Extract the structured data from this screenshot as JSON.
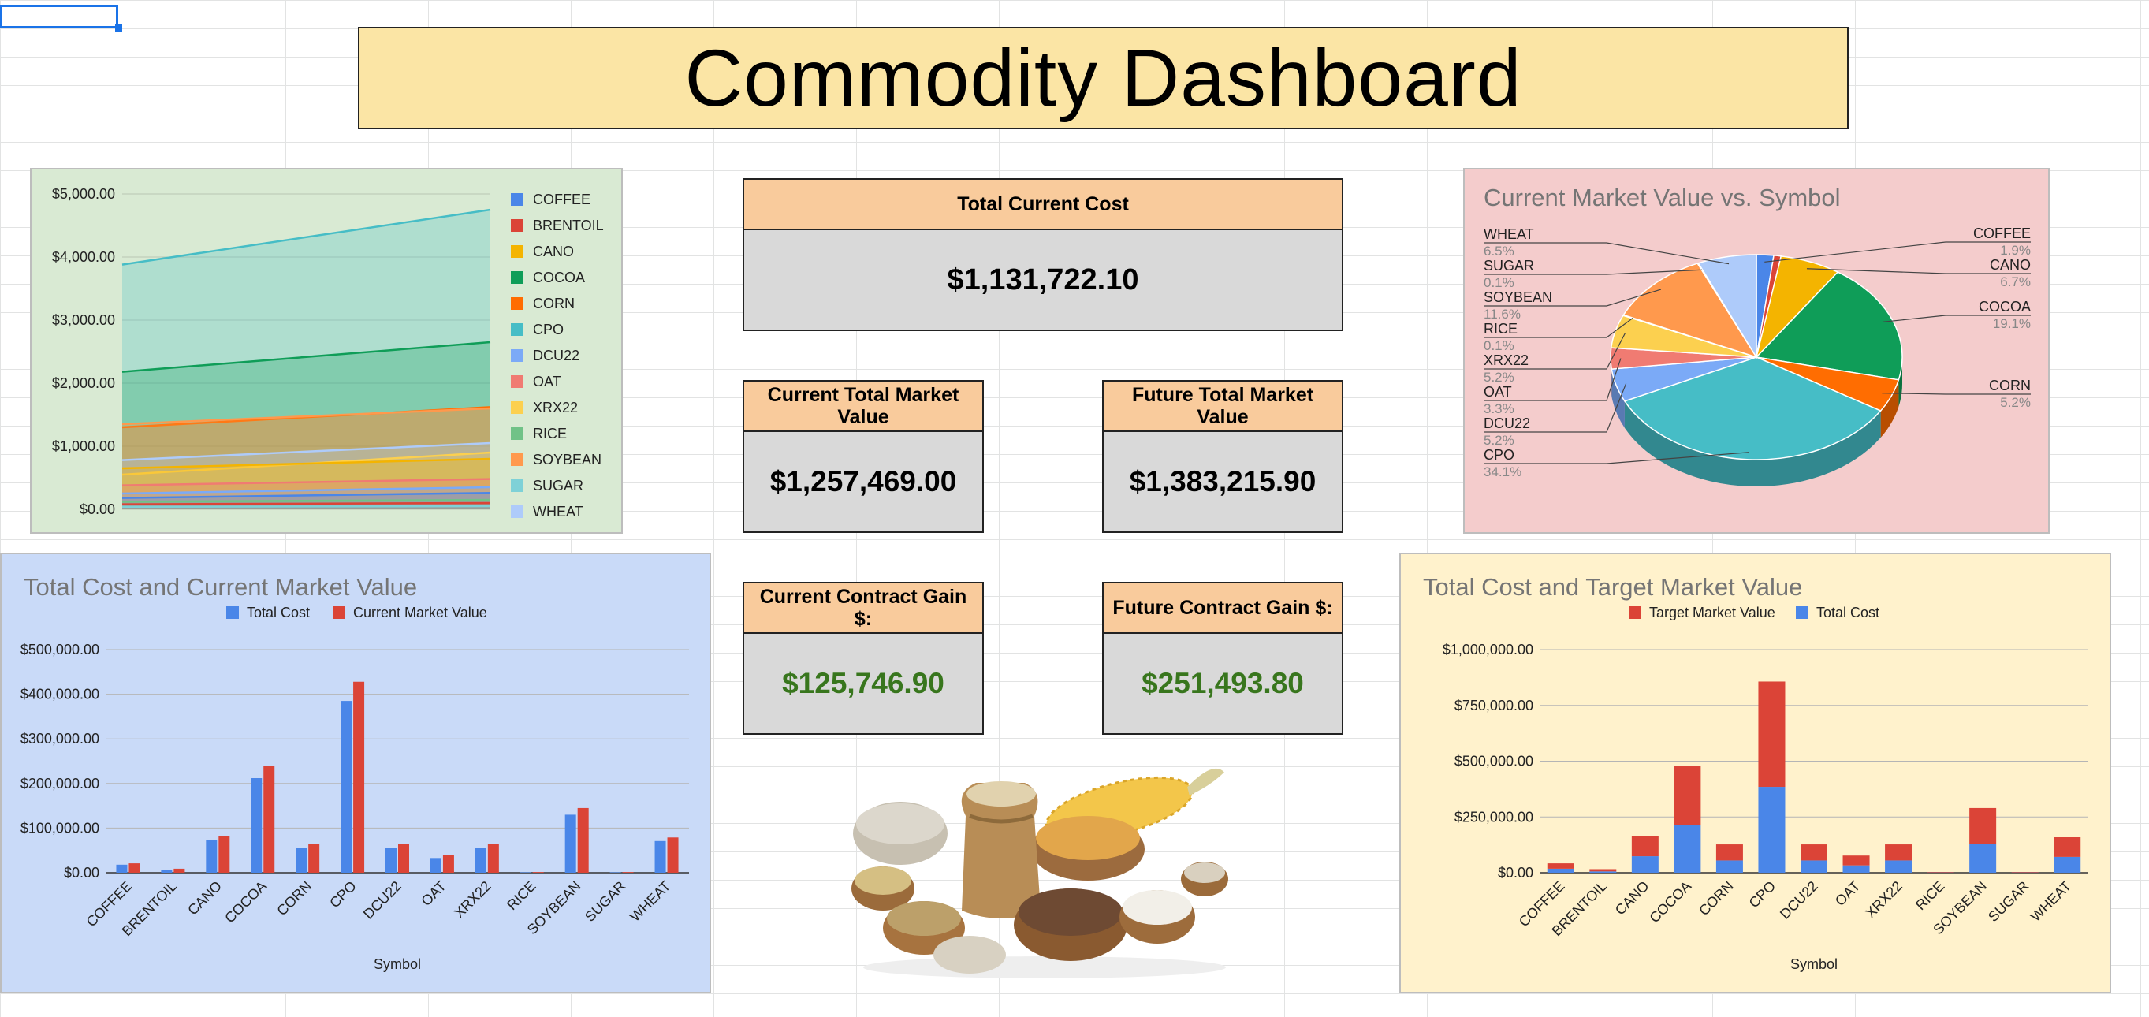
{
  "dashboard": {
    "title": "Commodity Dashboard"
  },
  "kpis": {
    "total_current_cost": {
      "label": "Total Current Cost",
      "value": "$1,131,722.10"
    },
    "current_total_market_value": {
      "label": "Current Total Market Value",
      "value": "$1,257,469.00"
    },
    "future_total_market_value": {
      "label": "Future Total Market Value",
      "value": "$1,383,215.90"
    },
    "current_contract_gain": {
      "label": "Current Contract Gain $:",
      "value": "$125,746.90"
    },
    "future_contract_gain": {
      "label": "Future Contract Gain $:",
      "value": "$251,493.80"
    }
  },
  "colors": {
    "COFFEE": "#4a86e8",
    "BRENTOIL": "#db4437",
    "CANO": "#f4b400",
    "COCOA": "#0f9d58",
    "CORN": "#ff6d01",
    "CPO": "#46bdc6",
    "DCU22": "#7baaf7",
    "OAT": "#f07b72",
    "XRX22": "#fcd04f",
    "RICE": "#71c287",
    "SOYBEAN": "#ff994d",
    "SUGAR": "#7ed1d7",
    "WHEAT": "#aecbfa",
    "total_cost": "#4a86e8",
    "market_value": "#db4437"
  },
  "chart_data": [
    {
      "type": "area",
      "title": "",
      "ylim": [
        0,
        5000
      ],
      "yticks": [
        "$0.00",
        "$1,000.00",
        "$2,000.00",
        "$3,000.00",
        "$4,000.00",
        "$5,000.00"
      ],
      "grid": true,
      "legend_position": "right",
      "series": [
        {
          "name": "COFFEE",
          "start": 180,
          "end": 260
        },
        {
          "name": "BRENTOIL",
          "start": 80,
          "end": 100
        },
        {
          "name": "CANO",
          "start": 650,
          "end": 800
        },
        {
          "name": "COCOA",
          "start": 2180,
          "end": 2650
        },
        {
          "name": "CORN",
          "start": 1300,
          "end": 1620
        },
        {
          "name": "CPO",
          "start": 3880,
          "end": 4750
        },
        {
          "name": "DCU22",
          "start": 250,
          "end": 350
        },
        {
          "name": "OAT",
          "start": 380,
          "end": 480
        },
        {
          "name": "XRX22",
          "start": 550,
          "end": 900
        },
        {
          "name": "RICE",
          "start": 120,
          "end": 150
        },
        {
          "name": "SOYBEAN",
          "start": 1350,
          "end": 1600
        },
        {
          "name": "SUGAR",
          "start": 40,
          "end": 50
        },
        {
          "name": "WHEAT",
          "start": 780,
          "end": 1050
        }
      ]
    },
    {
      "type": "pie",
      "title": "Current Market Value vs. Symbol",
      "slices": [
        {
          "label": "COFFEE",
          "pct_label": "1.9%",
          "value": 1.9
        },
        {
          "label": "BRENTOIL",
          "pct_label": "",
          "value": 0.8
        },
        {
          "label": "CANO",
          "pct_label": "6.7%",
          "value": 6.7
        },
        {
          "label": "COCOA",
          "pct_label": "19.1%",
          "value": 19.1
        },
        {
          "label": "CORN",
          "pct_label": "5.2%",
          "value": 5.2
        },
        {
          "label": "CPO",
          "pct_label": "34.1%",
          "value": 34.1
        },
        {
          "label": "DCU22",
          "pct_label": "5.2%",
          "value": 5.2
        },
        {
          "label": "OAT",
          "pct_label": "3.3%",
          "value": 3.3
        },
        {
          "label": "XRX22",
          "pct_label": "5.2%",
          "value": 5.2
        },
        {
          "label": "RICE",
          "pct_label": "0.1%",
          "value": 0.1
        },
        {
          "label": "SOYBEAN",
          "pct_label": "11.6%",
          "value": 11.6
        },
        {
          "label": "SUGAR",
          "pct_label": "0.1%",
          "value": 0.1
        },
        {
          "label": "WHEAT",
          "pct_label": "6.5%",
          "value": 6.5
        }
      ]
    },
    {
      "type": "bar",
      "title": "Total Cost and Current Market Value",
      "xlabel": "Symbol",
      "ylabel": "",
      "ylim": [
        0,
        500000
      ],
      "yticks": [
        "$0.00",
        "$100,000.00",
        "$200,000.00",
        "$300,000.00",
        "$400,000.00",
        "$500,000.00"
      ],
      "legend_position": "top",
      "categories": [
        "COFFEE",
        "BRENTOIL",
        "CANO",
        "COCOA",
        "CORN",
        "CPO",
        "DCU22",
        "OAT",
        "XRX22",
        "RICE",
        "SOYBEAN",
        "SUGAR",
        "WHEAT"
      ],
      "series": [
        {
          "name": "Total Cost",
          "values": [
            18000,
            6000,
            74000,
            212000,
            55000,
            385000,
            55000,
            33000,
            55000,
            1000,
            130000,
            1000,
            71000
          ]
        },
        {
          "name": "Current Market Value",
          "values": [
            21000,
            9000,
            82000,
            240000,
            64000,
            428000,
            64000,
            40000,
            64000,
            1500,
            145000,
            1500,
            79000
          ]
        }
      ]
    },
    {
      "type": "bar",
      "stacked": true,
      "title": "Total Cost and Target Market Value",
      "xlabel": "Symbol",
      "ylabel": "",
      "ylim": [
        0,
        1000000
      ],
      "yticks": [
        "$0.00",
        "$250,000.00",
        "$500,000.00",
        "$750,000.00",
        "$1,000,000.00"
      ],
      "legend_position": "top",
      "categories": [
        "COFFEE",
        "BRENTOIL",
        "CANO",
        "COCOA",
        "CORN",
        "CPO",
        "DCU22",
        "OAT",
        "XRX22",
        "RICE",
        "SOYBEAN",
        "SUGAR",
        "WHEAT"
      ],
      "series": [
        {
          "name": "Target Market Value",
          "values": [
            24000,
            10000,
            90000,
            265000,
            72000,
            472000,
            72000,
            44000,
            72000,
            2000,
            160000,
            2000,
            88000
          ]
        },
        {
          "name": "Total Cost",
          "values": [
            18000,
            6000,
            74000,
            212000,
            55000,
            385000,
            55000,
            33000,
            55000,
            1000,
            130000,
            1000,
            71000
          ]
        }
      ]
    }
  ]
}
